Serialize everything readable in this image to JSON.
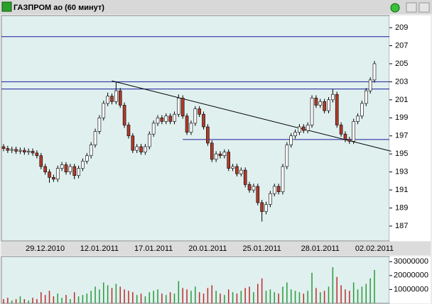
{
  "chart_data": {
    "type": "candlestick",
    "title": "ГАЗПРОМ ао (60 минут)",
    "categories": [
      null,
      null,
      null,
      null,
      null,
      null,
      null,
      null,
      null,
      null,
      "29.12.2010",
      null,
      null,
      null,
      null,
      null,
      null,
      null,
      null,
      null,
      null,
      null,
      null,
      "12.01.2011",
      null,
      null,
      null,
      null,
      null,
      null,
      null,
      null,
      null,
      null,
      null,
      null,
      "17.01.2011",
      null,
      null,
      null,
      null,
      null,
      null,
      null,
      null,
      null,
      null,
      null,
      null,
      "20.01.2011",
      null,
      null,
      null,
      null,
      null,
      null,
      null,
      null,
      null,
      null,
      null,
      null,
      "25.01.2011",
      null,
      null,
      null,
      null,
      null,
      null,
      null,
      null,
      null,
      null,
      null,
      null,
      null,
      "28.01.2011",
      null,
      null,
      null,
      null,
      null,
      null,
      null,
      null,
      null,
      null,
      null,
      null,
      "02.02.2011"
    ],
    "open": [
      195.8,
      195.6,
      195.4,
      195.5,
      195.3,
      195.4,
      195.2,
      195.3,
      195.1,
      194.8,
      193.6,
      193.0,
      192.4,
      192.2,
      193.4,
      193.8,
      193.0,
      193.6,
      192.6,
      193.4,
      194.2,
      194.8,
      196.0,
      197.5,
      199.0,
      200.6,
      201.4,
      200.8,
      202.0,
      200.4,
      198.2,
      197.0,
      195.4,
      195.8,
      195.2,
      195.8,
      197.2,
      198.4,
      199.0,
      198.6,
      199.2,
      198.6,
      199.4,
      201.2,
      199.2,
      197.4,
      198.4,
      200.0,
      199.4,
      198.0,
      196.2,
      194.4,
      195.0,
      194.8,
      195.2,
      193.4,
      193.6,
      192.8,
      193.2,
      191.6,
      191.0,
      191.4,
      189.6,
      188.6,
      189.4,
      190.6,
      191.4,
      190.8,
      193.6,
      196.0,
      197.0,
      197.4,
      198.0,
      197.6,
      198.2,
      201.2,
      200.4,
      200.8,
      199.8,
      201.0,
      201.6,
      198.2,
      197.2,
      196.6,
      196.4,
      198.6,
      199.2,
      200.6,
      202.0,
      203.2
    ],
    "high": [
      196.1,
      195.9,
      195.8,
      195.8,
      195.7,
      195.7,
      195.6,
      195.6,
      195.4,
      195.1,
      193.9,
      193.3,
      192.7,
      193.7,
      194.1,
      194.1,
      193.9,
      193.9,
      193.7,
      194.5,
      195.1,
      196.3,
      197.8,
      199.3,
      200.9,
      201.8,
      201.7,
      203.0,
      202.3,
      200.7,
      198.5,
      197.3,
      196.1,
      196.1,
      196.1,
      197.5,
      198.7,
      199.3,
      199.3,
      199.5,
      199.5,
      199.7,
      201.6,
      201.5,
      199.5,
      198.7,
      200.3,
      200.3,
      199.7,
      198.3,
      196.5,
      195.3,
      195.3,
      195.5,
      195.5,
      193.9,
      193.9,
      193.5,
      193.5,
      191.9,
      191.7,
      191.7,
      189.9,
      189.7,
      190.9,
      191.7,
      191.7,
      193.9,
      196.3,
      197.3,
      197.7,
      198.3,
      198.3,
      198.5,
      201.5,
      201.5,
      201.1,
      201.1,
      201.3,
      202.2,
      201.9,
      198.5,
      197.5,
      196.9,
      198.9,
      199.5,
      200.9,
      202.3,
      203.5,
      205.3
    ],
    "low": [
      195.3,
      195.1,
      195.1,
      195.0,
      195.0,
      194.9,
      194.9,
      194.8,
      194.5,
      193.3,
      192.7,
      191.8,
      191.9,
      191.9,
      193.1,
      192.7,
      192.7,
      192.2,
      192.3,
      193.1,
      193.9,
      194.5,
      195.7,
      197.2,
      198.7,
      200.3,
      200.5,
      200.5,
      200.1,
      197.9,
      196.7,
      195.1,
      195.1,
      194.9,
      194.9,
      195.5,
      196.9,
      198.1,
      198.3,
      198.3,
      198.3,
      198.3,
      199.1,
      198.9,
      197.1,
      197.1,
      198.1,
      199.1,
      197.7,
      195.9,
      194.1,
      194.1,
      194.5,
      194.5,
      193.1,
      193.1,
      192.5,
      192.5,
      191.3,
      190.7,
      190.7,
      189.3,
      187.5,
      188.3,
      189.1,
      190.3,
      190.5,
      190.5,
      193.3,
      195.7,
      196.7,
      197.1,
      197.3,
      197.3,
      197.9,
      200.1,
      200.1,
      199.5,
      199.5,
      200.7,
      197.9,
      196.9,
      196.3,
      196.1,
      196.1,
      198.3,
      198.9,
      200.3,
      201.7,
      202.9
    ],
    "close": [
      195.6,
      195.4,
      195.5,
      195.3,
      195.4,
      195.2,
      195.3,
      195.1,
      194.8,
      193.6,
      193.0,
      192.4,
      192.2,
      193.4,
      193.8,
      193.0,
      193.6,
      192.6,
      193.4,
      194.2,
      194.8,
      196.0,
      197.5,
      199.0,
      200.6,
      201.4,
      200.8,
      202.0,
      200.4,
      198.2,
      197.0,
      195.4,
      195.8,
      195.2,
      195.8,
      197.2,
      198.4,
      199.0,
      198.6,
      199.2,
      198.6,
      199.4,
      201.2,
      199.2,
      197.4,
      198.4,
      200.0,
      199.4,
      198.0,
      196.2,
      194.4,
      195.0,
      194.8,
      195.2,
      193.4,
      193.6,
      192.8,
      193.2,
      191.6,
      191.0,
      191.4,
      189.6,
      188.6,
      189.4,
      190.6,
      191.4,
      190.8,
      193.6,
      196.0,
      197.0,
      197.4,
      198.0,
      197.6,
      198.2,
      201.2,
      200.4,
      200.8,
      199.8,
      201.0,
      201.6,
      198.2,
      197.2,
      196.6,
      196.4,
      198.6,
      199.2,
      200.6,
      202.0,
      203.2,
      205.0
    ],
    "up_color": "#ffffff",
    "down_color": "#b03a2a",
    "ylim": [
      185.35,
      210.34
    ],
    "yticks": [
      187,
      189,
      191,
      193,
      195,
      197,
      199,
      201,
      203,
      205,
      207,
      209
    ],
    "levels": [
      208,
      203,
      202.2
    ],
    "support": {
      "value": 196.6,
      "from": 43
    },
    "trendline": {
      "x": [
        26,
        93
      ],
      "y": [
        203.1,
        195.3
      ]
    },
    "volume": {
      "values": [
        3000000,
        4000000,
        2000000,
        3000000,
        5000000,
        3000000,
        2000000,
        4000000,
        3000000,
        8000000,
        6000000,
        9000000,
        5000000,
        7000000,
        4000000,
        6000000,
        3000000,
        8000000,
        5000000,
        6000000,
        7000000,
        9000000,
        12000000,
        10000000,
        15000000,
        13000000,
        11000000,
        14000000,
        12000000,
        10000000,
        9000000,
        8000000,
        6000000,
        7000000,
        5000000,
        8000000,
        9000000,
        10000000,
        7000000,
        6000000,
        8000000,
        7000000,
        16000000,
        11000000,
        10000000,
        9000000,
        12000000,
        8000000,
        7000000,
        11000000,
        13000000,
        9000000,
        7000000,
        6000000,
        10000000,
        8000000,
        7000000,
        9000000,
        11000000,
        12000000,
        8000000,
        14000000,
        18000000,
        9000000,
        10000000,
        8000000,
        7000000,
        12000000,
        15000000,
        10000000,
        9000000,
        8000000,
        7000000,
        9000000,
        22000000,
        11000000,
        8000000,
        9000000,
        12000000,
        26000000,
        19000000,
        13000000,
        10000000,
        9000000,
        15000000,
        10000000,
        12000000,
        14000000,
        18000000,
        24000000
      ],
      "ylim": [
        0,
        33700000
      ],
      "yticks": [
        10000000,
        20000000,
        30000000
      ],
      "up_color": "#2a9a3a",
      "down_color": "#c02a2a"
    }
  }
}
